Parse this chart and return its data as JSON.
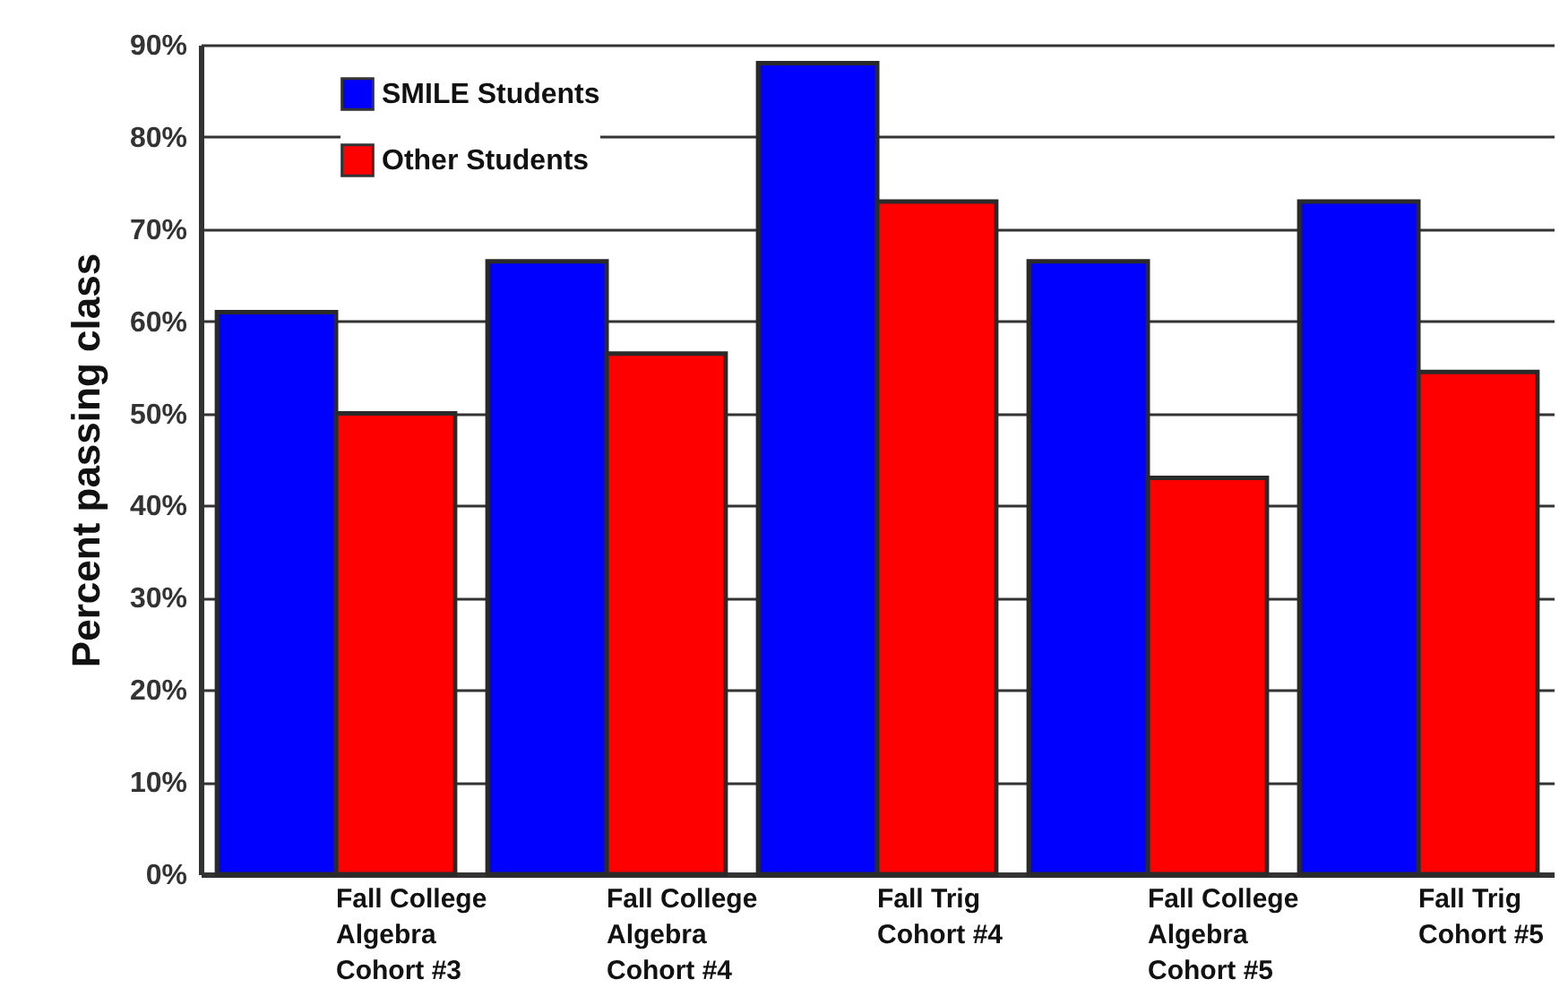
{
  "chart_data": {
    "type": "bar",
    "ylabel": "Percent passing class",
    "categories": [
      "Fall College\nAlgebra\nCohort #3",
      "Fall College\nAlgebra\nCohort #4",
      "Fall Trig\nCohort #4",
      "Fall College\nAlgebra\nCohort #5",
      "Fall Trig\nCohort #5"
    ],
    "series": [
      {
        "name": "SMILE Students",
        "color": "#0000ff",
        "values": [
          61,
          66.5,
          88,
          66.5,
          73
        ]
      },
      {
        "name": "Other Students",
        "color": "#ff0000",
        "values": [
          50,
          56.5,
          73,
          43,
          54.5
        ]
      }
    ],
    "ylim": [
      0,
      90
    ],
    "yticks": [
      {
        "value": 0,
        "label": "0%"
      },
      {
        "value": 10,
        "label": "10%"
      },
      {
        "value": 20,
        "label": "20%"
      },
      {
        "value": 30,
        "label": "30%"
      },
      {
        "value": 40,
        "label": "40%"
      },
      {
        "value": 50,
        "label": "50%"
      },
      {
        "value": 60,
        "label": "60%"
      },
      {
        "value": 70,
        "label": "70%"
      },
      {
        "value": 80,
        "label": "80%"
      },
      {
        "value": 90,
        "label": "90%"
      }
    ],
    "grid": "y",
    "legend": "top left"
  }
}
